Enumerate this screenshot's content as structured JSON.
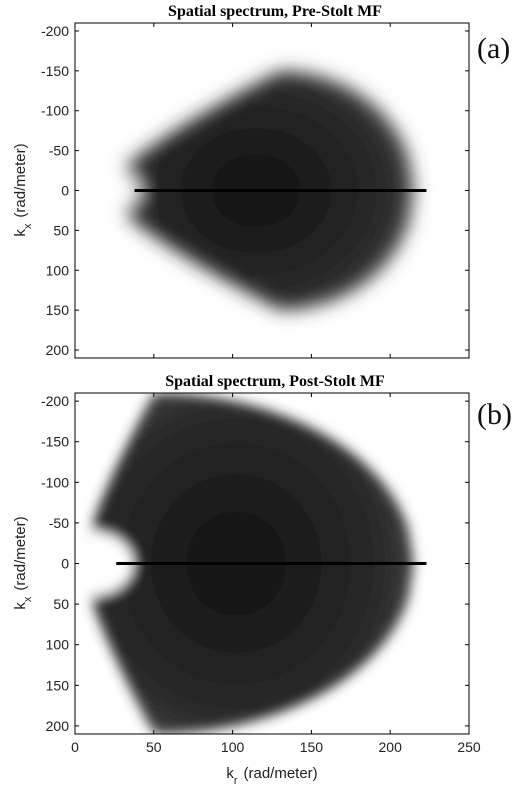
{
  "chart_data": [
    {
      "type": "heatmap",
      "title": "Spatial spectrum, Pre-Stolt  MF",
      "panel_label": "(a)",
      "ylabel": "k_x (rad/meter)",
      "ylabel_main": "k",
      "ylabel_sub": "x",
      "ylabel_unit": "(rad/meter)",
      "xlim": [
        0,
        250
      ],
      "ylim": [
        -210,
        210
      ],
      "y_reversed": true,
      "yticks": [
        -200,
        -150,
        -100,
        -50,
        0,
        50,
        100,
        150,
        200
      ],
      "ytick_labels": [
        "-200",
        "-150",
        "-100",
        "-50",
        "0",
        "50",
        "100",
        "150",
        "200"
      ],
      "xticks": [
        0,
        50,
        100,
        150,
        200,
        250
      ],
      "xtick_labels": [],
      "colormap": "gray-reversed",
      "spectrum": {
        "kr_min": 33,
        "kr_max": 215,
        "kx_edge_start": 30,
        "kx_max": 150,
        "kx_max_at_kr": 130,
        "notch_depth_kr": 8,
        "notch_halfwidth_kx": 18,
        "center_line_kx": 0
      }
    },
    {
      "type": "heatmap",
      "title": "Spatial spectrum, Post-Stolt MF",
      "panel_label": "(b)",
      "ylabel": "k_x (rad/meter)",
      "ylabel_main": "k",
      "ylabel_sub": "x",
      "ylabel_unit": "(rad/meter)",
      "xlabel": "k_r (rad/meter)",
      "xlabel_main": "k",
      "xlabel_sub": "r",
      "xlabel_unit": "(rad/meter)",
      "xlim": [
        0,
        250
      ],
      "ylim": [
        -210,
        210
      ],
      "y_reversed": true,
      "yticks": [
        -200,
        -150,
        -100,
        -50,
        0,
        50,
        100,
        150,
        200
      ],
      "ytick_labels": [
        "-200",
        "-150",
        "-100",
        "-50",
        "0",
        "50",
        "100",
        "150",
        "200"
      ],
      "xticks": [
        0,
        50,
        100,
        150,
        200,
        250
      ],
      "xtick_labels": [
        "0",
        "50",
        "100",
        "150",
        "200",
        "250"
      ],
      "colormap": "gray-reversed",
      "spectrum": {
        "kr_min": 10,
        "kr_max": 215,
        "kx_edge_start": 40,
        "kx_max": 210,
        "kx_max_at_kr": 50,
        "notch_depth_kr": 27,
        "notch_halfwidth_kx": 40,
        "center_line_kx": 0
      }
    }
  ]
}
